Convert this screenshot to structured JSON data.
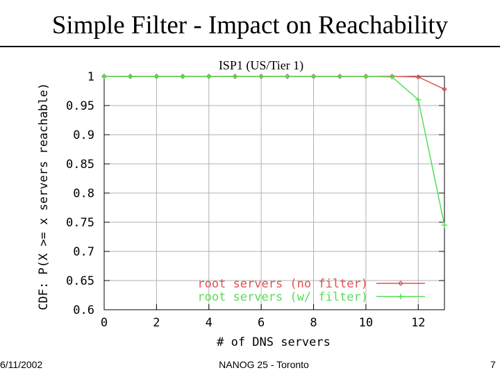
{
  "slide": {
    "title": "Simple Filter - Impact on Reachability",
    "footer_date": "6/11/2002",
    "footer_center": "NANOG 25 - Toronto",
    "page_number": "7"
  },
  "chart_data": {
    "type": "line",
    "title": "ISP1 (US/Tier 1)",
    "xlabel": "# of DNS servers",
    "ylabel": "CDF: P(X >= x servers reachable)",
    "xlim": [
      0,
      13
    ],
    "ylim": [
      0.6,
      1.0
    ],
    "xticks": [
      0,
      2,
      4,
      6,
      8,
      10,
      12
    ],
    "xtick_labels": [
      "0",
      "2",
      "4",
      "6",
      "8",
      "10",
      "12"
    ],
    "yticks": [
      0.6,
      0.65,
      0.7,
      0.75,
      0.8,
      0.85,
      0.9,
      0.95,
      1.0
    ],
    "ytick_labels": [
      "0.6",
      "0.65",
      "0.7",
      "0.75",
      "0.8",
      "0.85",
      "0.9",
      "0.95",
      "1"
    ],
    "grid": true,
    "legend_position": "bottom-right",
    "x": [
      0,
      1,
      2,
      3,
      4,
      5,
      6,
      7,
      8,
      9,
      10,
      11,
      12,
      13
    ],
    "series": [
      {
        "name": "root servers (no filter)",
        "color": "#e05050",
        "marker": "diamond",
        "values": [
          1,
          1,
          1,
          1,
          1,
          1,
          1,
          1,
          1,
          1,
          1,
          1,
          0.999,
          0.978
        ]
      },
      {
        "name": "root servers (w/ filter)",
        "color": "#55dd55",
        "marker": "plus",
        "values": [
          1,
          1,
          1,
          1,
          1,
          1,
          1,
          1,
          1,
          1,
          1,
          0.999,
          0.96,
          0.745
        ]
      }
    ]
  }
}
